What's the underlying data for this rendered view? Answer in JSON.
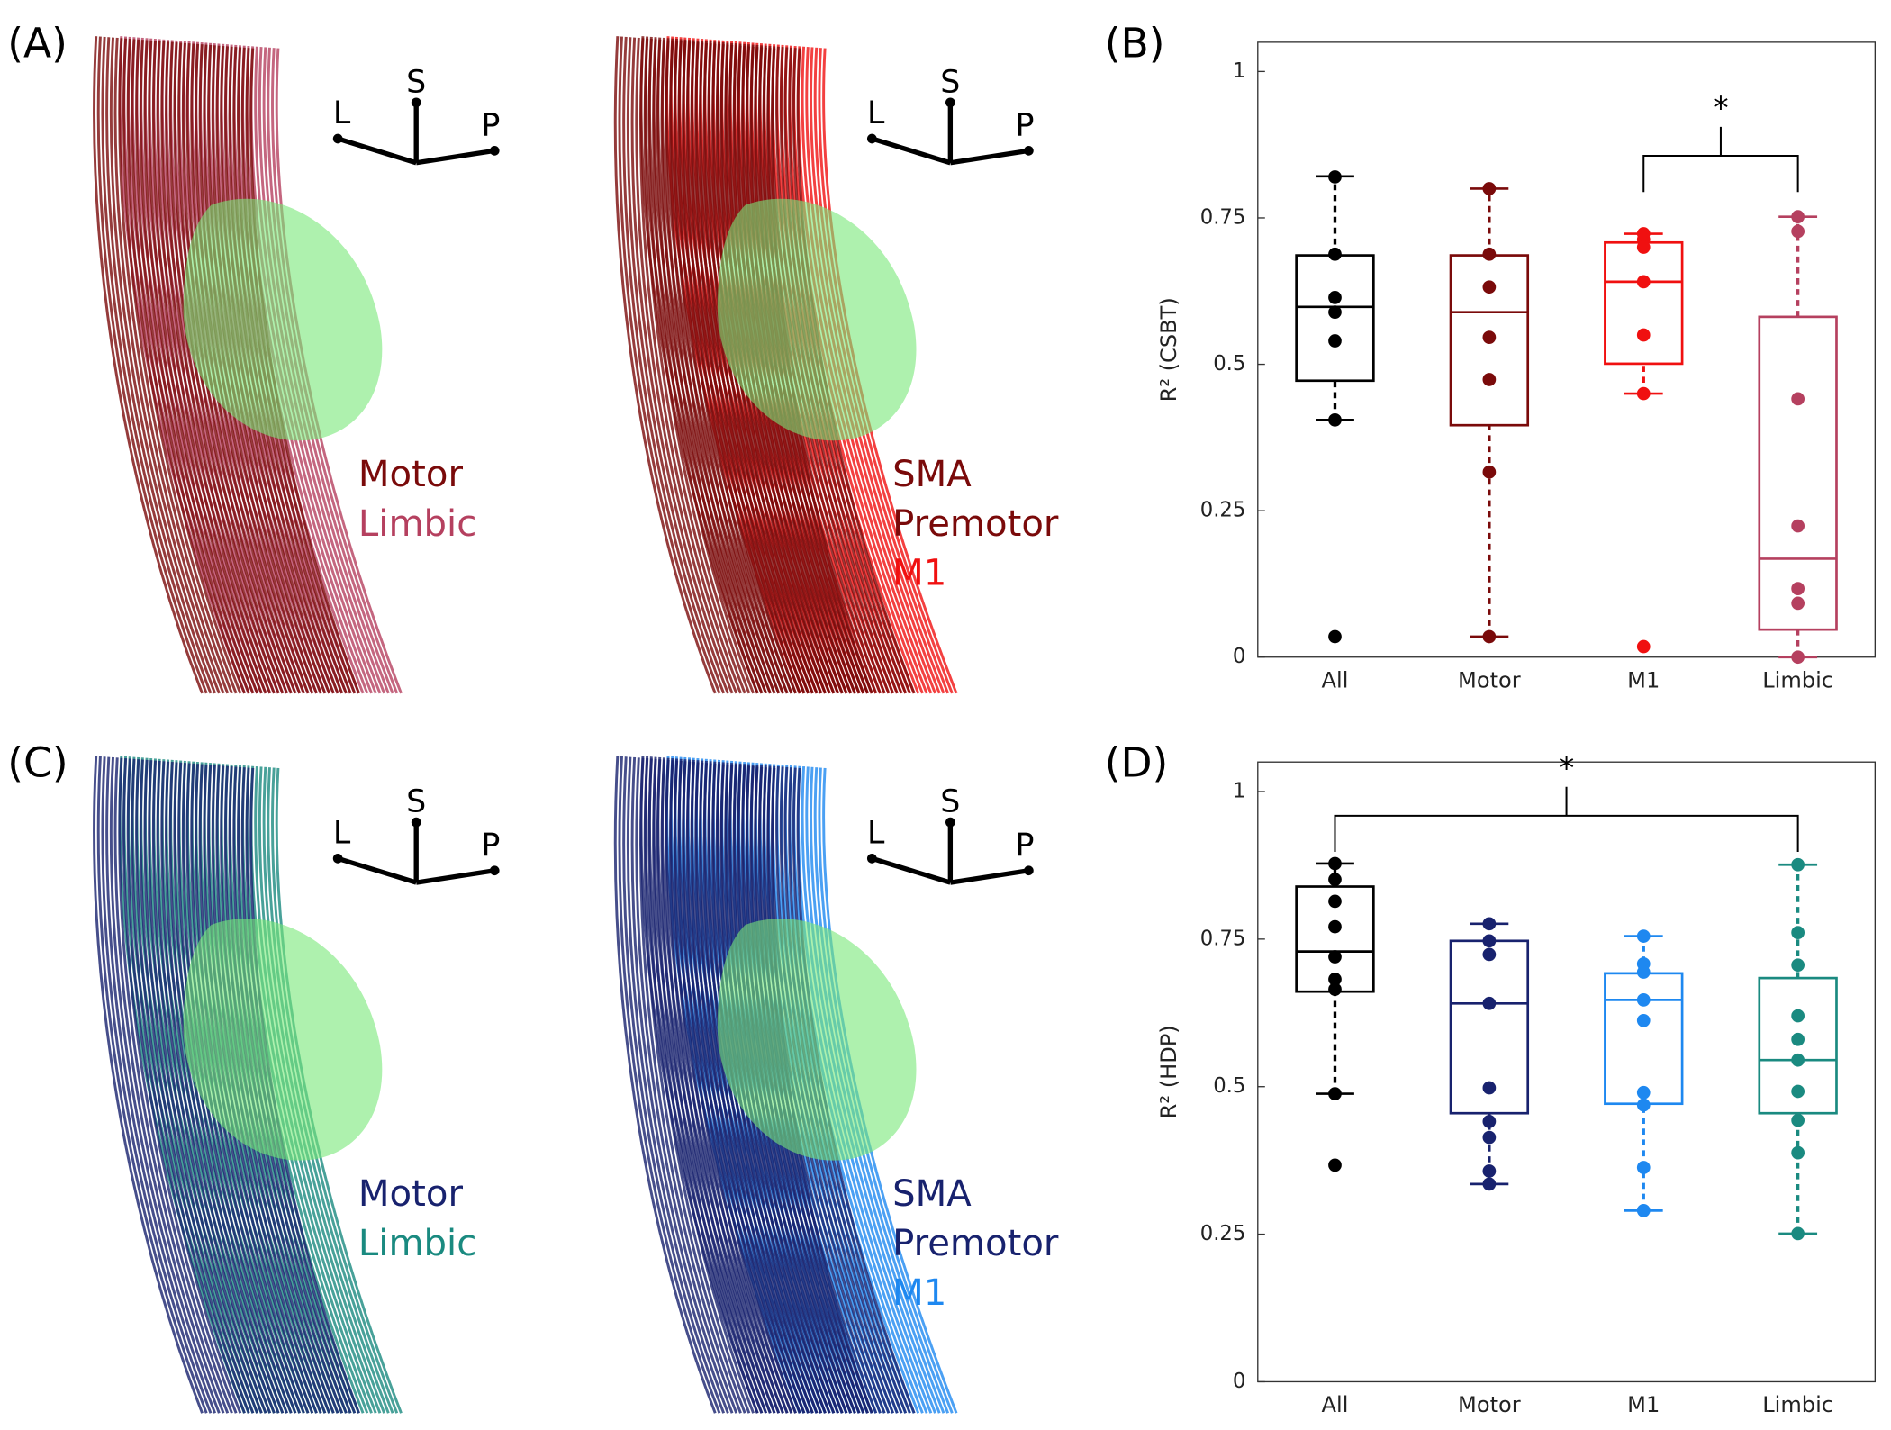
{
  "tract_panels": [
    {
      "label": "(A)",
      "views": [
        {
          "axes": [
            "L",
            "S",
            "P"
          ],
          "legend": [
            {
              "text": "Motor",
              "color": "#7a0a0a"
            },
            {
              "text": "Limbic",
              "color": "#b5405f"
            }
          ]
        },
        {
          "axes": [
            "L",
            "S",
            "P"
          ],
          "legend": [
            {
              "text": "SMA",
              "color": "#7a0a0a"
            },
            {
              "text": "Premotor",
              "color": "#7a0a0a"
            },
            {
              "text": "M1",
              "color": "#f01010"
            }
          ]
        }
      ]
    },
    {
      "label": "(C)",
      "views": [
        {
          "axes": [
            "L",
            "S",
            "P"
          ],
          "legend": [
            {
              "text": "Motor",
              "color": "#18226e"
            },
            {
              "text": "Limbic",
              "color": "#1a8a80"
            }
          ]
        },
        {
          "axes": [
            "L",
            "S",
            "P"
          ],
          "legend": [
            {
              "text": "SMA",
              "color": "#18226e"
            },
            {
              "text": "Premotor",
              "color": "#18226e"
            },
            {
              "text": "M1",
              "color": "#1e88f0"
            }
          ]
        }
      ]
    }
  ],
  "chart_data": [
    {
      "type": "box",
      "label": "(B)",
      "ylabel": "R² (CSBT)",
      "categories": [
        "All",
        "Motor",
        "M1",
        "Limbic"
      ],
      "ylim": [
        0,
        1.05
      ],
      "yticks": [
        0,
        0.25,
        0.5,
        0.75,
        1
      ],
      "boxes": [
        {
          "color": "#000000",
          "whisker_low": 0.405,
          "q1": 0.472,
          "median": 0.598,
          "q3": 0.686,
          "whisker_high": 0.821,
          "points": [
            0.82,
            0.688,
            0.614,
            0.589,
            0.54,
            0.405,
            0.035
          ]
        },
        {
          "color": "#7a0a0a",
          "whisker_low": 0.035,
          "q1": 0.396,
          "median": 0.589,
          "q3": 0.686,
          "whisker_high": 0.8,
          "points": [
            0.8,
            0.688,
            0.632,
            0.546,
            0.474,
            0.316,
            0.035
          ]
        },
        {
          "color": "#f01010",
          "whisker_low": 0.45,
          "q1": 0.501,
          "median": 0.641,
          "q3": 0.708,
          "whisker_high": 0.723,
          "points": [
            0.723,
            0.713,
            0.7,
            0.641,
            0.55,
            0.45,
            0.018
          ]
        },
        {
          "color": "#b5405f",
          "whisker_low": 0,
          "q1": 0.047,
          "median": 0.168,
          "q3": 0.581,
          "whisker_high": 0.752,
          "points": [
            0.752,
            0.727,
            0.441,
            0.224,
            0.117,
            0.092,
            0
          ]
        }
      ],
      "significance": [
        {
          "label": "*",
          "from": 2,
          "to": 3,
          "y": 0.856
        }
      ]
    },
    {
      "type": "box",
      "label": "(D)",
      "ylabel": "R² (HDP)",
      "categories": [
        "All",
        "Motor",
        "M1",
        "Limbic"
      ],
      "ylim": [
        0,
        1.05
      ],
      "yticks": [
        0,
        0.25,
        0.5,
        0.75,
        1
      ],
      "boxes": [
        {
          "color": "#000000",
          "whisker_low": 0.488,
          "q1": 0.661,
          "median": 0.729,
          "q3": 0.839,
          "whisker_high": 0.878,
          "points": [
            0.878,
            0.851,
            0.814,
            0.771,
            0.72,
            0.682,
            0.665,
            0.488,
            0.367
          ]
        },
        {
          "color": "#18226e",
          "whisker_low": 0.335,
          "q1": 0.455,
          "median": 0.641,
          "q3": 0.747,
          "whisker_high": 0.776,
          "points": [
            0.776,
            0.747,
            0.724,
            0.641,
            0.498,
            0.441,
            0.414,
            0.357,
            0.335
          ]
        },
        {
          "color": "#1e88f0",
          "whisker_low": 0.29,
          "q1": 0.471,
          "median": 0.647,
          "q3": 0.692,
          "whisker_high": 0.755,
          "points": [
            0.755,
            0.708,
            0.694,
            0.647,
            0.612,
            0.49,
            0.469,
            0.363,
            0.29
          ]
        },
        {
          "color": "#1a8a80",
          "whisker_low": 0.251,
          "q1": 0.455,
          "median": 0.545,
          "q3": 0.684,
          "whisker_high": 0.876,
          "points": [
            0.876,
            0.761,
            0.706,
            0.62,
            0.58,
            0.545,
            0.492,
            0.443,
            0.388,
            0.251
          ]
        }
      ],
      "significance": [
        {
          "label": "*",
          "from": 0,
          "to": 3,
          "y": 0.959
        }
      ]
    }
  ]
}
